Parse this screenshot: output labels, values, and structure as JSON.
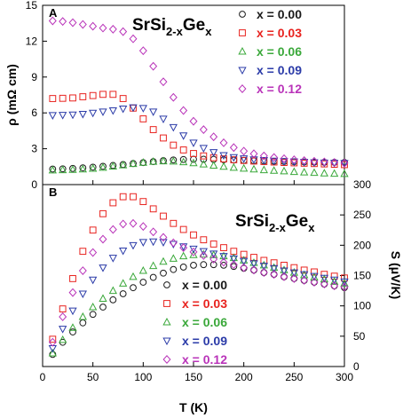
{
  "chart_data": [
    {
      "panel": "A",
      "type": "scatter",
      "title": "SrSi",
      "title_sub": "2-x",
      "title_mid": "Ge",
      "title_sub2": "x",
      "ylabel": "ρ (mΩ cm)",
      "ylim": [
        0,
        15
      ],
      "xlim": [
        0,
        300
      ],
      "yticks": [
        "0",
        "3",
        "6",
        "9",
        "12",
        "15"
      ],
      "legend_position": "right",
      "series": [
        {
          "name": "x = 0.00",
          "color": "#1a1a1a",
          "marker": "circle",
          "x": [
            10,
            20,
            30,
            40,
            50,
            60,
            70,
            80,
            90,
            100,
            110,
            120,
            130,
            140,
            150,
            160,
            170,
            180,
            190,
            200,
            210,
            220,
            230,
            240,
            250,
            260,
            270,
            280,
            290,
            300
          ],
          "y": [
            1.3,
            1.32,
            1.35,
            1.4,
            1.46,
            1.53,
            1.6,
            1.68,
            1.76,
            1.84,
            1.92,
            2.0,
            2.06,
            2.1,
            2.12,
            2.12,
            2.11,
            2.08,
            2.05,
            2.02,
            1.99,
            1.97,
            1.95,
            1.93,
            1.91,
            1.89,
            1.88,
            1.87,
            1.86,
            1.85
          ]
        },
        {
          "name": "x = 0.03",
          "color": "#e8231f",
          "marker": "square",
          "x": [
            10,
            20,
            30,
            40,
            50,
            60,
            70,
            80,
            90,
            100,
            110,
            120,
            130,
            140,
            150,
            160,
            170,
            180,
            190,
            200,
            210,
            220,
            230,
            240,
            250,
            260,
            270,
            280,
            290,
            300
          ],
          "y": [
            7.2,
            7.22,
            7.25,
            7.35,
            7.45,
            7.55,
            7.55,
            7.2,
            6.4,
            5.5,
            4.6,
            3.9,
            3.3,
            2.9,
            2.6,
            2.4,
            2.25,
            2.15,
            2.08,
            2.02,
            1.97,
            1.93,
            1.89,
            1.85,
            1.82,
            1.79,
            1.76,
            1.73,
            1.7,
            1.67
          ]
        },
        {
          "name": "x = 0.06",
          "color": "#3aa83a",
          "marker": "triangle-up",
          "x": [
            10,
            20,
            30,
            40,
            50,
            60,
            70,
            80,
            90,
            100,
            110,
            120,
            130,
            140,
            150,
            160,
            170,
            180,
            190,
            200,
            210,
            220,
            230,
            240,
            250,
            260,
            270,
            280,
            290,
            300
          ],
          "y": [
            1.2,
            1.22,
            1.24,
            1.28,
            1.34,
            1.42,
            1.52,
            1.62,
            1.74,
            1.84,
            1.92,
            1.96,
            1.94,
            1.88,
            1.8,
            1.7,
            1.6,
            1.5,
            1.42,
            1.35,
            1.28,
            1.22,
            1.17,
            1.12,
            1.07,
            1.03,
            0.99,
            0.95,
            0.92,
            0.9
          ]
        },
        {
          "name": "x = 0.09",
          "color": "#2b3ba8",
          "marker": "triangle-down",
          "x": [
            10,
            20,
            30,
            40,
            50,
            60,
            70,
            80,
            90,
            100,
            110,
            120,
            130,
            140,
            150,
            160,
            170,
            180,
            190,
            200,
            210,
            220,
            230,
            240,
            250,
            260,
            270,
            280,
            290,
            300
          ],
          "y": [
            5.8,
            5.82,
            5.85,
            5.9,
            6.0,
            6.1,
            6.2,
            6.35,
            6.45,
            6.4,
            6.1,
            5.5,
            4.8,
            4.1,
            3.5,
            3.05,
            2.7,
            2.45,
            2.28,
            2.18,
            2.1,
            2.04,
            1.99,
            1.95,
            1.92,
            1.89,
            1.86,
            1.83,
            1.81,
            1.79
          ]
        },
        {
          "name": "x = 0.12",
          "color": "#b933b9",
          "marker": "diamond",
          "x": [
            10,
            20,
            30,
            40,
            50,
            60,
            70,
            80,
            90,
            100,
            110,
            120,
            130,
            140,
            150,
            160,
            170,
            180,
            190,
            200,
            210,
            220,
            230,
            240,
            250,
            260,
            270,
            280,
            290,
            300
          ],
          "y": [
            13.7,
            13.65,
            13.55,
            13.4,
            13.25,
            13.1,
            13.0,
            12.8,
            12.2,
            11.2,
            9.9,
            8.6,
            7.3,
            6.2,
            5.3,
            4.6,
            4.0,
            3.5,
            3.1,
            2.8,
            2.58,
            2.4,
            2.27,
            2.17,
            2.08,
            2.01,
            1.95,
            1.9,
            1.85,
            1.8
          ]
        }
      ]
    },
    {
      "panel": "B",
      "type": "scatter",
      "title": "SrSi",
      "title_sub": "2-x",
      "title_mid": "Ge",
      "title_sub2": "x",
      "xlabel": "T (K)",
      "ylabel": "S (μV/K)",
      "ylim": [
        0,
        300
      ],
      "xlim": [
        0,
        300
      ],
      "xticks": [
        "0",
        "50",
        "100",
        "150",
        "200",
        "250",
        "300"
      ],
      "yticks": [
        "0",
        "50",
        "100",
        "150",
        "200",
        "250",
        "300"
      ],
      "legend_position": "center",
      "series": [
        {
          "name": "x = 0.00",
          "color": "#1a1a1a",
          "marker": "circle",
          "x": [
            10,
            20,
            30,
            40,
            50,
            60,
            70,
            80,
            90,
            100,
            110,
            120,
            130,
            140,
            150,
            160,
            170,
            180,
            190,
            200,
            210,
            220,
            230,
            240,
            250,
            260,
            270,
            280,
            290,
            300
          ],
          "y": [
            20,
            40,
            57,
            72,
            86,
            98,
            110,
            120,
            130,
            139,
            147,
            154,
            160,
            164,
            167,
            168,
            168,
            167,
            165,
            162,
            159,
            155,
            152,
            148,
            145,
            142,
            139,
            136,
            133,
            130
          ]
        },
        {
          "name": "x = 0.03",
          "color": "#e8231f",
          "marker": "square",
          "x": [
            10,
            20,
            30,
            40,
            50,
            60,
            70,
            80,
            90,
            100,
            110,
            120,
            130,
            140,
            150,
            160,
            170,
            180,
            190,
            200,
            210,
            220,
            230,
            240,
            250,
            260,
            270,
            280,
            290,
            300
          ],
          "y": [
            45,
            95,
            145,
            190,
            225,
            252,
            270,
            280,
            280,
            272,
            260,
            248,
            236,
            226,
            217,
            209,
            202,
            196,
            190,
            185,
            180,
            175,
            171,
            167,
            163,
            159,
            156,
            152,
            149,
            146
          ]
        },
        {
          "name": "x = 0.06",
          "color": "#3aa83a",
          "marker": "triangle-up",
          "x": [
            10,
            20,
            30,
            40,
            50,
            60,
            70,
            80,
            90,
            100,
            110,
            120,
            130,
            140,
            150,
            160,
            170,
            180,
            190,
            200,
            210,
            220,
            230,
            240,
            250,
            260,
            270,
            280,
            290,
            300
          ],
          "y": [
            22,
            44,
            64,
            82,
            98,
            112,
            125,
            137,
            148,
            158,
            166,
            173,
            178,
            182,
            184,
            185,
            184,
            182,
            179,
            175,
            171,
            167,
            163,
            159,
            155,
            151,
            147,
            144,
            140,
            137
          ]
        },
        {
          "name": "x = 0.09",
          "color": "#2b3ba8",
          "marker": "triangle-down",
          "x": [
            10,
            20,
            30,
            40,
            50,
            60,
            70,
            80,
            90,
            100,
            110,
            120,
            130,
            140,
            150,
            160,
            170,
            180,
            190,
            200,
            210,
            220,
            230,
            240,
            250,
            260,
            270,
            280,
            290,
            300
          ],
          "y": [
            30,
            62,
            92,
            120,
            143,
            163,
            179,
            191,
            200,
            205,
            206,
            205,
            202,
            198,
            194,
            190,
            186,
            182,
            178,
            174,
            170,
            166,
            162,
            158,
            155,
            152,
            149,
            146,
            143,
            140
          ]
        },
        {
          "name": "x = 0.12",
          "color": "#b933b9",
          "marker": "diamond",
          "x": [
            10,
            20,
            30,
            40,
            50,
            60,
            70,
            80,
            90,
            100,
            110,
            120,
            130,
            140,
            150,
            160,
            170,
            180,
            190,
            200,
            210,
            220,
            230,
            240,
            250,
            260,
            270,
            280,
            290,
            300
          ],
          "y": [
            40,
            82,
            122,
            158,
            188,
            210,
            226,
            235,
            236,
            231,
            222,
            213,
            204,
            196,
            189,
            183,
            177,
            172,
            168,
            163,
            159,
            155,
            152,
            148,
            145,
            142,
            139,
            136,
            133,
            131
          ]
        }
      ]
    }
  ]
}
